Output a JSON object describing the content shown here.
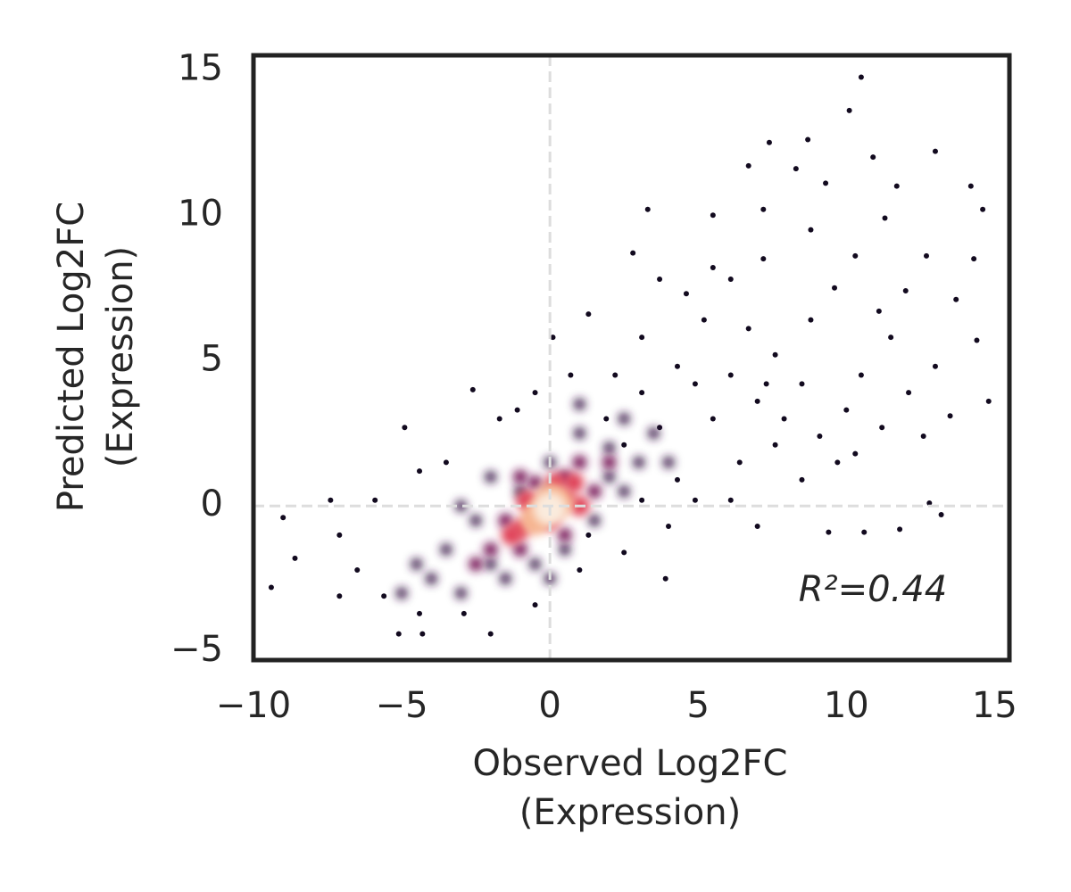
{
  "chart_data": {
    "type": "scatter",
    "xlabel": [
      "Observed Log2FC",
      "(Expression)"
    ],
    "ylabel": [
      "Predicted Log2FC",
      "(Expression)"
    ],
    "annotation": "R²=0.44",
    "xlim": [
      -10,
      15.5
    ],
    "ylim": [
      -5.3,
      15.5
    ],
    "xticks": [
      {
        "value": -10,
        "label": "−10"
      },
      {
        "value": -5,
        "label": "−5"
      },
      0,
      5,
      10,
      15
    ],
    "yticks": [
      {
        "value": -5,
        "label": "−5"
      },
      0,
      5,
      10,
      15
    ],
    "hlines": [
      0
    ],
    "vlines": [
      0
    ],
    "reference_line_color": "#dddddd",
    "series": [
      {
        "color": "#120a1f",
        "x": [
          10.5,
          10.1,
          8.7,
          7.4,
          13,
          10.9,
          6.7,
          8.3,
          9.3,
          14.2,
          11.7,
          3.3,
          5.5,
          7.2,
          14.6,
          11.3,
          8.8,
          14.3,
          2.8,
          12.7,
          10.3,
          7.2,
          5.5,
          12,
          13.7,
          14.4,
          14.8,
          13.5,
          13,
          13.2,
          12.8,
          11.8,
          10.6,
          9.4,
          7,
          3.9,
          -9.4,
          -9,
          -8.6,
          -7.1,
          -5.1,
          -4.3,
          -2,
          -4.9,
          -2.6,
          0.1,
          1.3,
          3.7,
          4.6,
          6.1,
          9.6,
          11.1,
          11.5,
          10.5,
          12.1,
          12.6,
          11.2,
          9.7,
          8.5,
          7.9,
          10,
          7.6,
          8.8,
          6.7,
          5.2,
          4.3,
          3.1,
          2.2,
          2.5,
          5.5,
          7,
          6.4,
          4.9,
          4,
          2.5,
          1,
          -0.5,
          -2.9,
          -4.4,
          -5.6,
          -6.5,
          -7.1,
          -7.4,
          -5.9,
          -4.4,
          -3.5,
          -1.7,
          -1.1,
          -0.5,
          0.7,
          1.9,
          3.1,
          3.7,
          4.9,
          6.1,
          7.3,
          8.5,
          9.1,
          10.3,
          7.6,
          6.1,
          4.3,
          3.1,
          1.3
        ],
        "y": [
          14.75,
          13.6,
          12.6,
          12.5,
          12.2,
          12,
          11.7,
          11.6,
          11.1,
          11,
          11,
          10.2,
          10,
          10.2,
          10.2,
          9.9,
          9.5,
          8.5,
          8.7,
          8.6,
          8.6,
          8.5,
          8.2,
          7.4,
          7.1,
          5.7,
          3.6,
          3.1,
          4.8,
          -0.3,
          0.1,
          -0.8,
          -0.9,
          -0.9,
          -0.7,
          -2.5,
          -2.8,
          -0.4,
          -1.8,
          -3.1,
          -4.4,
          -4.4,
          -4.4,
          2.7,
          4,
          5.8,
          6.6,
          7.8,
          7.3,
          7.8,
          7.5,
          6.7,
          5.8,
          4.5,
          3.9,
          2.4,
          2.7,
          1.5,
          0.9,
          3,
          3.3,
          5.2,
          6.4,
          6.1,
          6.4,
          4.8,
          5.8,
          4.5,
          2.1,
          3,
          3.6,
          1.5,
          0.2,
          -0.7,
          -1.6,
          -2.2,
          -3.4,
          -3.7,
          -3.7,
          -3.1,
          -2.2,
          -1,
          0.2,
          0.2,
          1.2,
          1.5,
          3,
          3.3,
          3.9,
          4.5,
          3,
          3.9,
          2.7,
          4.2,
          4.5,
          4.2,
          4.2,
          2.4,
          1.8,
          2.1,
          0.2,
          0.9,
          0.2,
          -1
        ]
      },
      {
        "color": "#3a1a4a",
        "x": [
          -4,
          -3.5,
          -3,
          -2,
          -2.5,
          -1.5,
          -1,
          0,
          1,
          2,
          2.5,
          3,
          1.5,
          2.5,
          0.5,
          -0.5,
          3.5,
          -4.5,
          -3,
          1,
          2,
          -5,
          4,
          0,
          -2
        ],
        "y": [
          -2.5,
          -1.5,
          -3,
          -2,
          -0.5,
          -2.5,
          0.5,
          1.5,
          2.5,
          2,
          3,
          1.5,
          -0.5,
          0.5,
          -1.5,
          -2,
          2.5,
          -2,
          0,
          3.5,
          1,
          -3,
          1.5,
          -2.5,
          1
        ]
      },
      {
        "color": "#7a1f5c",
        "x": [
          -2,
          -1.5,
          -1,
          0,
          0.5,
          1,
          1.5,
          -0.5,
          0.5,
          -2.5,
          2,
          -1
        ],
        "y": [
          -1.5,
          -0.5,
          -1.5,
          0.5,
          1,
          1.5,
          0.5,
          0.8,
          -1,
          -2,
          1.5,
          1
        ]
      },
      {
        "color": "#e0455a",
        "x": [
          -1,
          -0.5,
          0,
          0.5,
          -0.8,
          0.8,
          0.2,
          -1.3,
          1
        ],
        "y": [
          -0.8,
          0,
          -0.5,
          0.3,
          0.2,
          0.8,
          0.8,
          -1,
          0
        ]
      },
      {
        "color": "#f6b48f",
        "x": [
          -0.3,
          0.3,
          0,
          -0.5
        ],
        "y": [
          -0.2,
          0.1,
          0.3,
          -0.5
        ]
      },
      {
        "color": "#faebdd",
        "x": [
          0
        ],
        "y": [
          -0.1
        ]
      }
    ]
  }
}
